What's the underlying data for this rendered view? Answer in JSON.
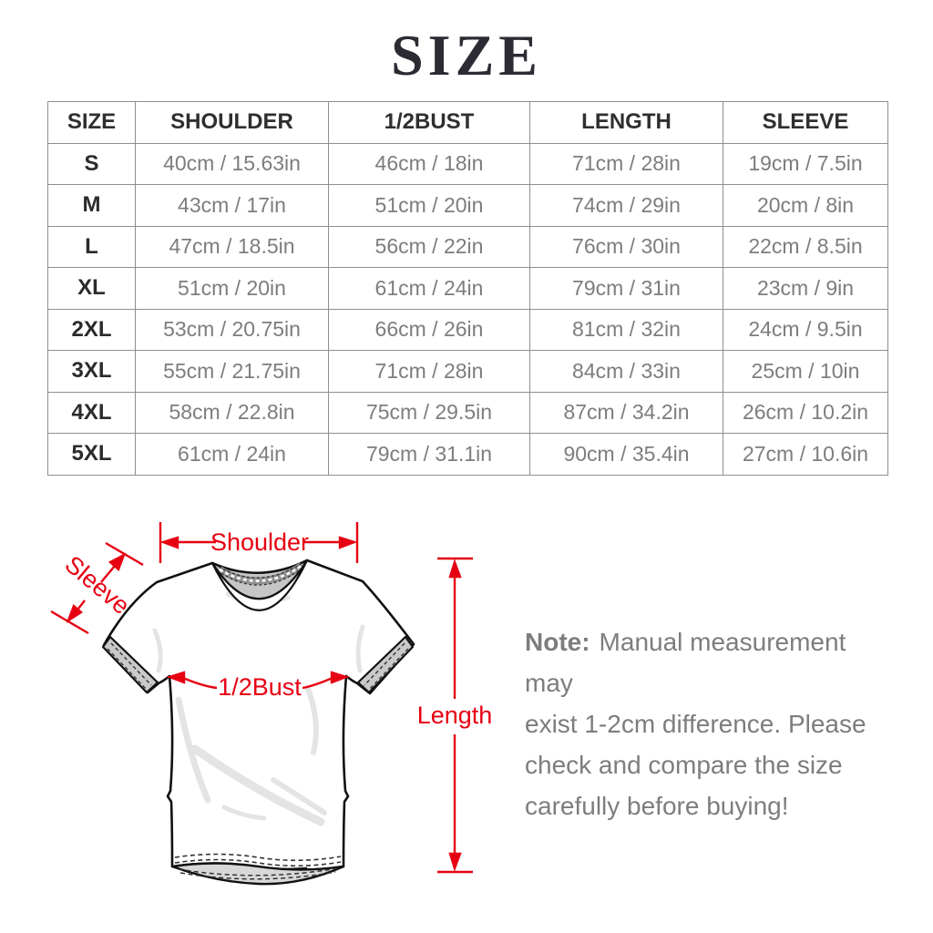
{
  "title": "SIZE",
  "table": {
    "columns": [
      "SIZE",
      "SHOULDER",
      "1/2BUST",
      "LENGTH",
      "SLEEVE"
    ],
    "rows": [
      [
        "S",
        "40cm / 15.63in",
        "46cm / 18in",
        "71cm / 28in",
        "19cm / 7.5in"
      ],
      [
        "M",
        "43cm / 17in",
        "51cm / 20in",
        "74cm / 29in",
        "20cm / 8in"
      ],
      [
        "L",
        "47cm / 18.5in",
        "56cm / 22in",
        "76cm / 30in",
        "22cm / 8.5in"
      ],
      [
        "XL",
        "51cm / 20in",
        "61cm / 24in",
        "79cm / 31in",
        "23cm / 9in"
      ],
      [
        "2XL",
        "53cm / 20.75in",
        "66cm / 26in",
        "81cm / 32in",
        "24cm / 9.5in"
      ],
      [
        "3XL",
        "55cm / 21.75in",
        "71cm / 28in",
        "84cm / 33in",
        "25cm / 10in"
      ],
      [
        "4XL",
        "58cm / 22.8in",
        "75cm / 29.5in",
        "87cm / 34.2in",
        "26cm / 10.2in"
      ],
      [
        "5XL",
        "61cm / 24in",
        "79cm / 31.1in",
        "90cm / 35.4in",
        "27cm / 10.6in"
      ]
    ]
  },
  "diagram": {
    "labels": {
      "shoulder": "Shoulder",
      "sleeve": "Sleeve",
      "bust": "1/2Bust",
      "length": "Length"
    }
  },
  "note": {
    "label": "Note:",
    "lines": [
      "Manual measurement may",
      "exist 1-2cm difference. Please",
      "check and compare the size",
      "carefully before buying!"
    ]
  },
  "colors": {
    "annotation_red": "#e60012"
  }
}
